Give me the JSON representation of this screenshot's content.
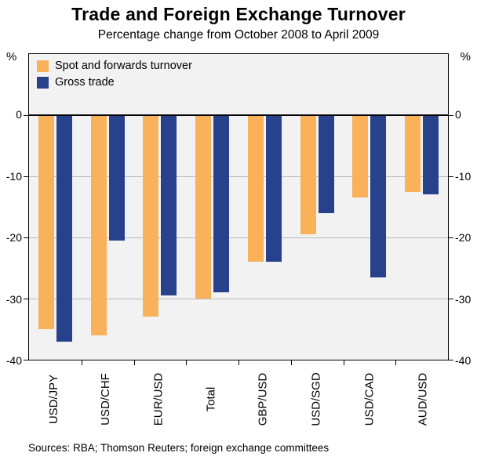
{
  "header": {
    "title": "Trade and Foreign Exchange Turnover",
    "subtitle": "Percentage change from October 2008 to April 2009"
  },
  "axis": {
    "unit_left": "%",
    "unit_right": "%",
    "ticks": [
      0,
      -10,
      -20,
      -30,
      -40
    ]
  },
  "legend": [
    {
      "label": "Spot and forwards turnover",
      "color": "#f9b25a"
    },
    {
      "label": "Gross trade",
      "color": "#28418d"
    }
  ],
  "footer": {
    "sources": "Sources: RBA; Thomson Reuters; foreign exchange committees"
  },
  "chart_data": {
    "type": "bar",
    "title": "Trade and Foreign Exchange Turnover",
    "subtitle": "Percentage change from October 2008 to April 2009",
    "xlabel": "",
    "ylabel": "%",
    "ylim": [
      -40,
      10
    ],
    "grid": true,
    "legend_position": "top-left",
    "categories": [
      "USD/JPY",
      "USD/CHF",
      "EUR/USD",
      "Total",
      "GBP/USD",
      "USD/SGD",
      "USD/CAD",
      "AUD/USD"
    ],
    "series": [
      {
        "name": "Spot and forwards turnover",
        "color": "#f9b25a",
        "values": [
          -35,
          -36,
          -33,
          -30,
          -24,
          -19.5,
          -13.5,
          -12.5
        ]
      },
      {
        "name": "Gross trade",
        "color": "#28418d",
        "values": [
          -37,
          -20.5,
          -29.5,
          -29,
          -24,
          -16,
          -26.5,
          -13
        ]
      }
    ]
  }
}
